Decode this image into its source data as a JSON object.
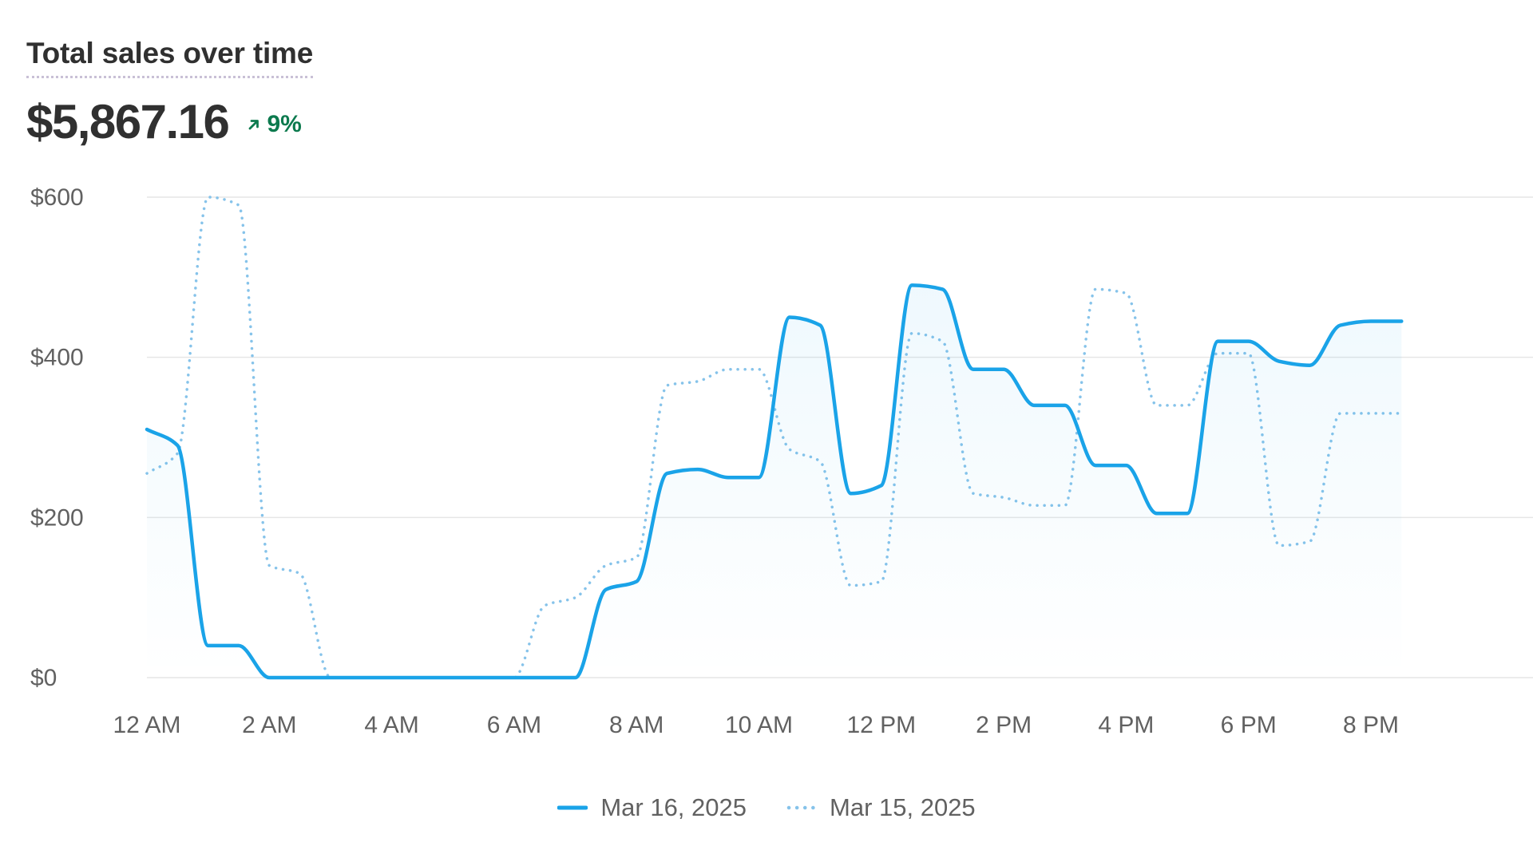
{
  "card": {
    "title": "Total sales over time",
    "value": "$5,867.16",
    "delta": "9%",
    "delta_direction": "up",
    "delta_icon": "arrow-up-right-icon",
    "delta_color": "#0c7a4e"
  },
  "colors": {
    "current": "#1aa3e8",
    "previous": "#86c3ea",
    "grid": "#e6e6e6",
    "text": "#303030",
    "muted": "#616161"
  },
  "chart_data": {
    "type": "line",
    "x": [
      0,
      0.5,
      1,
      1.5,
      2,
      2.5,
      3,
      3.5,
      4,
      4.5,
      5,
      5.5,
      6,
      6.5,
      7,
      7.5,
      8,
      8.5,
      9,
      9.5,
      10,
      10.5,
      11,
      11.5,
      12,
      12.5,
      13,
      13.5,
      14,
      14.5,
      15,
      15.5,
      16,
      16.5,
      17,
      17.5,
      18,
      18.5,
      19,
      19.5,
      20,
      20.5
    ],
    "x_tick_values": [
      0,
      2,
      4,
      6,
      8,
      10,
      12,
      14,
      16,
      18,
      20
    ],
    "x_tick_labels": [
      "12 AM",
      "2 AM",
      "4 AM",
      "6 AM",
      "8 AM",
      "10 AM",
      "12 PM",
      "2 PM",
      "4 PM",
      "6 PM",
      "8 PM"
    ],
    "xlim": [
      0,
      20.6
    ],
    "ylim": [
      0,
      600
    ],
    "y_tick_values": [
      0,
      200,
      400,
      600
    ],
    "y_tick_labels": [
      "$0",
      "$200",
      "$400",
      "$600"
    ],
    "grid": true,
    "legend_position": "bottom-center",
    "series": [
      {
        "name": "Mar 16, 2025",
        "style": "solid",
        "fill": true,
        "values": [
          310,
          290,
          40,
          40,
          0,
          0,
          0,
          0,
          0,
          0,
          0,
          0,
          0,
          0,
          0,
          110,
          120,
          255,
          260,
          250,
          250,
          450,
          440,
          230,
          240,
          490,
          485,
          385,
          385,
          340,
          340,
          265,
          265,
          205,
          205,
          420,
          420,
          395,
          390,
          440,
          445,
          445
        ]
      },
      {
        "name": "Mar 15, 2025",
        "style": "dotted",
        "fill": false,
        "values": [
          255,
          280,
          600,
          590,
          140,
          130,
          0,
          0,
          0,
          0,
          0,
          0,
          0,
          90,
          100,
          140,
          150,
          365,
          370,
          385,
          385,
          285,
          270,
          115,
          120,
          430,
          420,
          230,
          225,
          215,
          215,
          485,
          480,
          340,
          340,
          405,
          405,
          165,
          170,
          330,
          330,
          330
        ]
      }
    ]
  }
}
